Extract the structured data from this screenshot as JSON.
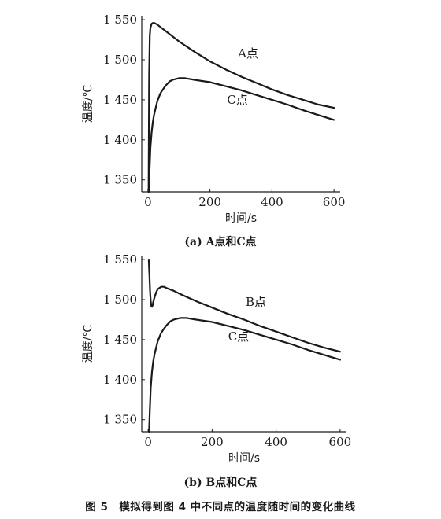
{
  "figure_caption": "图 5　模拟得到图 4 中不同点的温度随时间的变化曲线",
  "chart_data": [
    {
      "type": "line",
      "subcaption": "(a) A点和C点",
      "xlabel": "时间/s",
      "ylabel": "温度/℃",
      "xlim": [
        -20,
        620
      ],
      "ylim": [
        1335,
        1555
      ],
      "x_ticks": [
        0,
        200,
        400,
        600
      ],
      "x_tick_labels": [
        "0",
        "200",
        "400",
        "600"
      ],
      "y_ticks": [
        1350,
        1400,
        1450,
        1500,
        1550
      ],
      "y_tick_labels": [
        "1 350",
        "1 400",
        "1 450",
        "1 500",
        "1 550"
      ],
      "grid": false,
      "series": [
        {
          "name": "A点",
          "x": [
            2,
            4,
            6,
            8,
            12,
            16,
            20,
            30,
            40,
            60,
            80,
            100,
            150,
            200,
            250,
            300,
            350,
            400,
            450,
            500,
            550,
            600
          ],
          "y": [
            1335,
            1480,
            1530,
            1540,
            1545,
            1546,
            1546,
            1544,
            1541,
            1535,
            1529,
            1523,
            1510,
            1498,
            1488,
            1479,
            1471,
            1463,
            1456,
            1450,
            1444,
            1440
          ]
        },
        {
          "name": "C点",
          "x": [
            3,
            5,
            8,
            12,
            16,
            20,
            30,
            40,
            50,
            60,
            70,
            80,
            90,
            100,
            120,
            150,
            200,
            250,
            300,
            350,
            400,
            450,
            500,
            550,
            600
          ],
          "y": [
            1335,
            1360,
            1390,
            1410,
            1423,
            1432,
            1448,
            1458,
            1464,
            1469,
            1473,
            1475,
            1476,
            1477,
            1477,
            1475,
            1472,
            1467,
            1462,
            1456,
            1450,
            1444,
            1437,
            1431,
            1425
          ]
        }
      ],
      "annotations": [
        {
          "text": "A点",
          "x": 290,
          "y": 1503
        },
        {
          "text": "C点",
          "x": 255,
          "y": 1445
        }
      ]
    },
    {
      "type": "line",
      "subcaption": "(b) B点和C点",
      "xlabel": "时间/s",
      "ylabel": "温度/℃",
      "xlim": [
        -20,
        620
      ],
      "ylim": [
        1335,
        1555
      ],
      "x_ticks": [
        0,
        200,
        400,
        600
      ],
      "x_tick_labels": [
        "0",
        "200",
        "400",
        "600"
      ],
      "y_ticks": [
        1350,
        1400,
        1450,
        1500,
        1550
      ],
      "y_tick_labels": [
        "1 350",
        "1 400",
        "1 450",
        "1 500",
        "1 550"
      ],
      "grid": false,
      "series": [
        {
          "name": "B点",
          "x": [
            2,
            4,
            6,
            8,
            10,
            12,
            14,
            16,
            20,
            25,
            30,
            40,
            50,
            60,
            80,
            100,
            150,
            200,
            250,
            300,
            350,
            400,
            450,
            500,
            550,
            600
          ],
          "y": [
            1550,
            1530,
            1510,
            1498,
            1492,
            1491,
            1493,
            1497,
            1503,
            1509,
            1513,
            1516,
            1516,
            1514,
            1511,
            1507,
            1498,
            1490,
            1482,
            1475,
            1467,
            1460,
            1453,
            1446,
            1440,
            1435
          ]
        },
        {
          "name": "C点",
          "x": [
            3,
            5,
            8,
            12,
            16,
            20,
            30,
            40,
            50,
            60,
            70,
            80,
            90,
            100,
            120,
            150,
            200,
            250,
            300,
            350,
            400,
            450,
            500,
            550,
            600
          ],
          "y": [
            1335,
            1360,
            1390,
            1410,
            1423,
            1432,
            1448,
            1458,
            1464,
            1469,
            1473,
            1475,
            1476,
            1477,
            1477,
            1475,
            1472,
            1467,
            1462,
            1456,
            1450,
            1444,
            1437,
            1431,
            1425
          ]
        }
      ],
      "annotations": [
        {
          "text": "B点",
          "x": 305,
          "y": 1492
        },
        {
          "text": "C点",
          "x": 250,
          "y": 1449
        }
      ]
    }
  ]
}
